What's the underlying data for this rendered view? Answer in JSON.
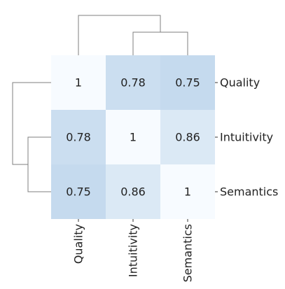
{
  "chart_data": {
    "type": "heatmap",
    "subtype": "clustermap",
    "rows": [
      "Quality",
      "Intuitivity",
      "Semantics"
    ],
    "columns": [
      "Quality",
      "Intuitivity",
      "Semantics"
    ],
    "values": [
      [
        1,
        0.78,
        0.75
      ],
      [
        0.78,
        1,
        0.86
      ],
      [
        0.75,
        0.86,
        1
      ]
    ],
    "cell_labels": [
      [
        "1",
        "0.78",
        "0.75"
      ],
      [
        "0.78",
        "1",
        "0.86"
      ],
      [
        "0.75",
        "0.86",
        "1"
      ]
    ],
    "color_range": [
      0.75,
      1
    ],
    "colors": {
      "low": "#c5daee",
      "high": "#f7fbff",
      "text": "#222222",
      "dendrogram": "#7f7f7f"
    },
    "row_dendrogram": "left",
    "column_dendrogram": "top",
    "row_labels_position": "right",
    "column_labels_position": "bottom",
    "column_labels_rotation": 90,
    "legend": "none",
    "grid": false
  }
}
